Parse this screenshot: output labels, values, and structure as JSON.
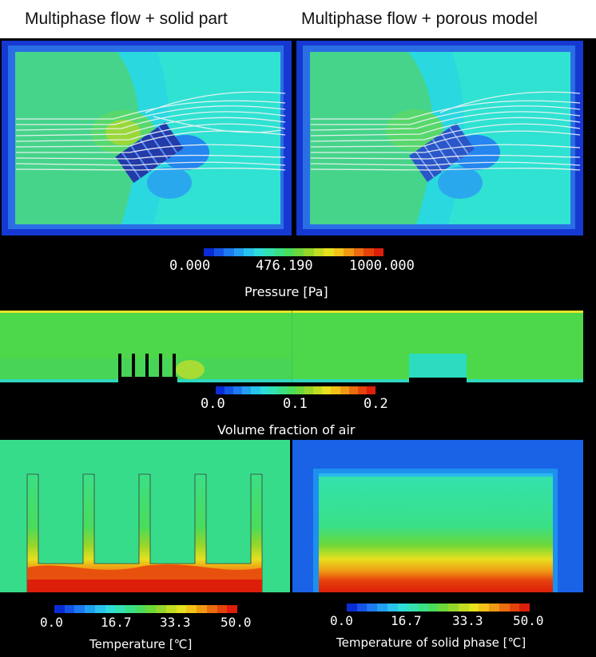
{
  "titles": {
    "left": "Multiphase flow + solid part",
    "right": "Multiphase flow + porous model"
  },
  "pressure_scale": {
    "min": "0.000",
    "mid": "476.190",
    "max": "1000.000",
    "caption": "Pressure [Pa]"
  },
  "volume_fraction_scale": {
    "min": "0.0",
    "mid": "0.1",
    "max": "0.2",
    "caption": "Volume fraction of air"
  },
  "temperature_scale_left": {
    "t0": "0.0",
    "t1": "16.7",
    "t2": "33.3",
    "t3": "50.0",
    "caption": "Temperature [℃]"
  },
  "temperature_scale_right": {
    "t0": "0.0",
    "t1": "16.7",
    "t2": "33.3",
    "t3": "50.0",
    "caption": "Temperature of solid phase [℃]"
  },
  "colors": {
    "colormap": [
      "#0a2cd6",
      "#1455e8",
      "#1d7af0",
      "#22a0f2",
      "#28c4ee",
      "#2edcd8",
      "#33e2b0",
      "#3ae086",
      "#4adc5c",
      "#6cd83a",
      "#96d62a",
      "#c2dc22",
      "#e6e01e",
      "#f2c218",
      "#f09a14",
      "#ec6c10",
      "#e6420c",
      "#dc1e0a"
    ]
  }
}
